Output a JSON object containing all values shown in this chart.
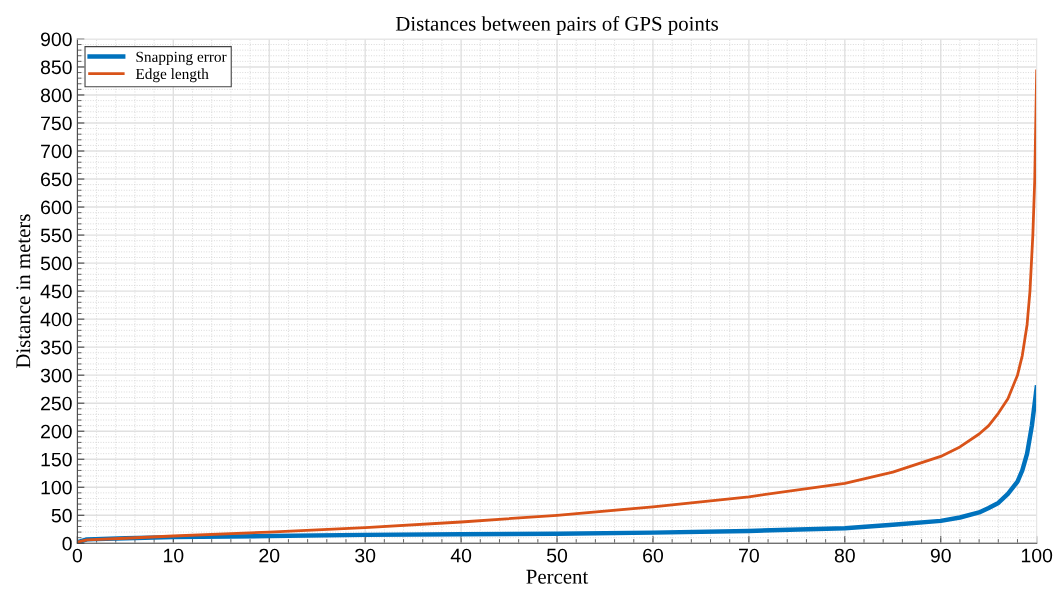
{
  "chart_data": {
    "type": "line",
    "title": "Distances between pairs of GPS points",
    "xlabel": "Percent",
    "ylabel": "Distance in meters",
    "xlim": [
      0,
      100
    ],
    "ylim": [
      0,
      900
    ],
    "xticks": [
      0,
      10,
      20,
      30,
      40,
      50,
      60,
      70,
      80,
      90,
      100
    ],
    "yticks": [
      0,
      50,
      100,
      150,
      200,
      250,
      300,
      350,
      400,
      450,
      500,
      550,
      600,
      650,
      700,
      750,
      800,
      850,
      900
    ],
    "grid": true,
    "legend": "top left",
    "marker": "none",
    "line_style": "solid",
    "series": [
      {
        "name": "Snapping error",
        "color": "#0072bd",
        "x": [
          0,
          1,
          5,
          10,
          20,
          30,
          40,
          50,
          60,
          70,
          80,
          85,
          90,
          92,
          94,
          95,
          96,
          97,
          98,
          98.5,
          99,
          99.5,
          100
        ],
        "values": [
          2,
          7,
          9,
          11,
          13,
          15,
          16,
          17,
          19,
          22,
          27,
          33,
          40,
          46,
          55,
          63,
          72,
          88,
          110,
          130,
          160,
          210,
          278
        ]
      },
      {
        "name": "Edge length",
        "color": "#d95319",
        "x": [
          0,
          1,
          5,
          10,
          20,
          30,
          40,
          50,
          60,
          70,
          80,
          85,
          90,
          92,
          94,
          95,
          96,
          97,
          98,
          98.5,
          99,
          99.3,
          99.6,
          99.8,
          100
        ],
        "values": [
          2,
          6,
          9,
          13,
          20,
          28,
          38,
          50,
          65,
          83,
          107,
          127,
          155,
          172,
          195,
          210,
          232,
          258,
          300,
          335,
          390,
          450,
          550,
          650,
          843
        ]
      }
    ]
  }
}
